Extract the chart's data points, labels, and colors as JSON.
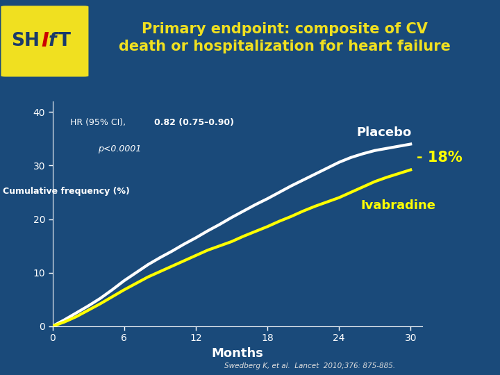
{
  "background_color": "#1a4a7a",
  "title_text": "Primary endpoint: composite of CV\ndeath or hospitalization for heart failure",
  "title_color": "#f0e020",
  "title_fontsize": 15,
  "ylabel": "Cumulative frequency (%)",
  "xlabel": "Months",
  "xlabel_fontsize": 13,
  "ylabel_fontsize": 9,
  "yticks": [
    0,
    10,
    20,
    30,
    40
  ],
  "xticks": [
    0,
    6,
    12,
    18,
    24,
    30
  ],
  "xlim": [
    0,
    31
  ],
  "ylim": [
    0,
    42
  ],
  "placebo_x": [
    0,
    1,
    2,
    3,
    4,
    5,
    6,
    7,
    8,
    9,
    10,
    11,
    12,
    13,
    14,
    15,
    16,
    17,
    18,
    19,
    20,
    21,
    22,
    23,
    24,
    25,
    26,
    27,
    28,
    29,
    30
  ],
  "placebo_y": [
    0,
    1.2,
    2.5,
    3.8,
    5.2,
    6.8,
    8.5,
    10.0,
    11.5,
    12.8,
    14.0,
    15.3,
    16.5,
    17.8,
    19.0,
    20.3,
    21.5,
    22.7,
    23.8,
    25.0,
    26.2,
    27.3,
    28.4,
    29.5,
    30.6,
    31.5,
    32.2,
    32.8,
    33.2,
    33.6,
    34.0
  ],
  "ivabradine_x": [
    0,
    1,
    2,
    3,
    4,
    5,
    6,
    7,
    8,
    9,
    10,
    11,
    12,
    13,
    14,
    15,
    16,
    17,
    18,
    19,
    20,
    21,
    22,
    23,
    24,
    25,
    26,
    27,
    28,
    29,
    30
  ],
  "ivabradine_y": [
    0,
    0.8,
    1.8,
    3.0,
    4.2,
    5.5,
    6.8,
    8.0,
    9.2,
    10.2,
    11.2,
    12.2,
    13.2,
    14.2,
    15.0,
    15.8,
    16.8,
    17.7,
    18.6,
    19.6,
    20.5,
    21.5,
    22.4,
    23.2,
    24.0,
    25.0,
    26.0,
    27.0,
    27.8,
    28.5,
    29.2
  ],
  "placebo_color": "#ffffff",
  "ivabradine_color": "#ffff00",
  "placebo_linewidth": 3,
  "ivabradine_linewidth": 3,
  "hr_text_normal": "HR (95% CI), ",
  "hr_text_bold": "0.82 (0.75–0.90)",
  "p_text": "p<0.0001",
  "placebo_label": "Placebo",
  "ivabradine_label": "Ivabradine",
  "reduction_label": "- 18%",
  "axis_color": "#ffffff",
  "tick_color": "#ffffff",
  "reference_text": "Swedberg K, et al.  Lancet  2010;376: 875-885.",
  "header_bg_color": "#1e5a9e"
}
